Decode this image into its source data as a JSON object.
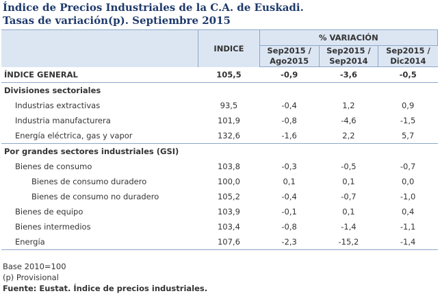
{
  "title_line1": "Índice de Precios Industriales de la C.A. de Euskadi.",
  "title_line2": "Tasas de variación(p). Septiembre 2015",
  "headers": {
    "indice": "INDICE",
    "variacion": "% VARIACIÓN",
    "col1": [
      "Sep2015 /",
      "Ago2015"
    ],
    "col2": [
      "Sep2015 /",
      "Sep2014"
    ],
    "col3": [
      "Sep2015 /",
      "Dic2014"
    ]
  },
  "rows": [
    {
      "label": "ÍNDICE GENERAL",
      "indice": "105,5",
      "v1": "-0,9",
      "v2": "-3,6",
      "v3": "-0,5"
    },
    {
      "label": "Divisiones sectoriales"
    },
    {
      "label": "Industrias extractivas",
      "indice": "93,5",
      "v1": "-0,4",
      "v2": "1,2",
      "v3": "0,9"
    },
    {
      "label": "Industria manufacturera",
      "indice": "101,9",
      "v1": "-0,8",
      "v2": "-4,6",
      "v3": "-1,5"
    },
    {
      "label": "Energía eléctrica, gas y vapor",
      "indice": "132,6",
      "v1": "-1,6",
      "v2": "2,2",
      "v3": "5,7"
    },
    {
      "label": "Por grandes sectores industriales (GSI)"
    },
    {
      "label": "Bienes de consumo",
      "indice": "103,8",
      "v1": "-0,3",
      "v2": "-0,5",
      "v3": "-0,7"
    },
    {
      "label": "Bienes de consumo duradero",
      "indice": "100,0",
      "v1": "0,1",
      "v2": "0,1",
      "v3": "0,0"
    },
    {
      "label": "Bienes de consumo no duradero",
      "indice": "105,2",
      "v1": "-0,4",
      "v2": "-0,7",
      "v3": "-1,0"
    },
    {
      "label": "Bienes de equipo",
      "indice": "103,9",
      "v1": "-0,1",
      "v2": "0,1",
      "v3": "0,4"
    },
    {
      "label": "Bienes intermedios",
      "indice": "103,4",
      "v1": "-0,8",
      "v2": "-1,4",
      "v3": "-1,1"
    },
    {
      "label": "Energía",
      "indice": "107,6",
      "v1": "-2,3",
      "v2": "-15,2",
      "v3": "-1,4"
    }
  ],
  "footer": {
    "base": "Base 2010=100",
    "provisional": "(p) Provisional",
    "source": "Fuente: Eustat. Índice de precios industriales."
  }
}
